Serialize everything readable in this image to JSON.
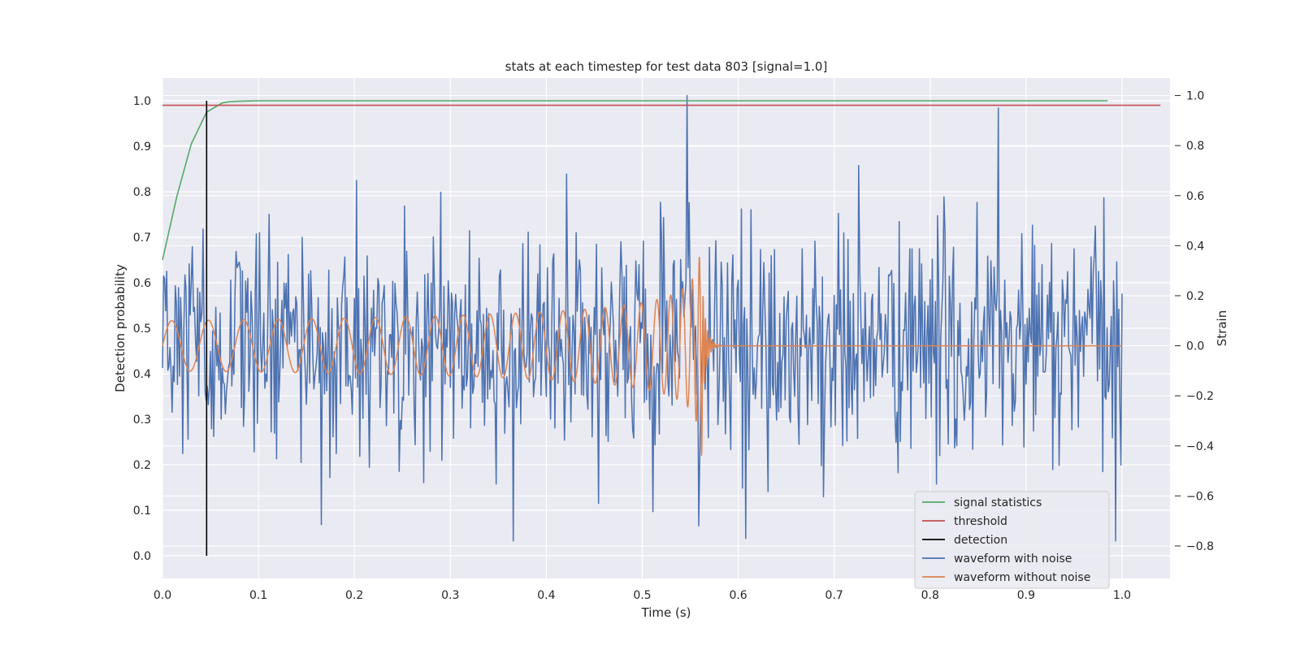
{
  "chart_data": {
    "type": "line",
    "title": "stats at each timestep for test data 803 [signal=1.0]",
    "xlabel": "Time (s)",
    "ylabel_left": "Detection probability",
    "ylabel_right": "Strain",
    "xlim": [
      0.0,
      1.05
    ],
    "ylim_left": [
      -0.05,
      1.05
    ],
    "ylim_right": [
      -0.93,
      1.07
    ],
    "x_ticks": [
      "0.0",
      "0.1",
      "0.2",
      "0.3",
      "0.4",
      "0.5",
      "0.6",
      "0.7",
      "0.8",
      "0.9",
      "1.0"
    ],
    "y_ticks_left": [
      "0.0",
      "0.1",
      "0.2",
      "0.3",
      "0.4",
      "0.5",
      "0.6",
      "0.7",
      "0.8",
      "0.9",
      "1.0"
    ],
    "y_ticks_right": [
      "−0.8",
      "−0.6",
      "−0.4",
      "−0.2",
      "0.0",
      "0.2",
      "0.4",
      "0.6",
      "0.8",
      "1.0"
    ],
    "grid": true,
    "legend_position": "lower-right",
    "legend": [
      {
        "label": "signal statistics",
        "color": "#55a868"
      },
      {
        "label": "threshold",
        "color": "#c44e52"
      },
      {
        "label": "detection",
        "color": "#000000"
      },
      {
        "label": "waveform with noise",
        "color": "#4c72b0"
      },
      {
        "label": "waveform without noise",
        "color": "#dd8452"
      }
    ],
    "series": [
      {
        "name": "signal statistics",
        "axis": "left",
        "color": "#55a868",
        "x": [
          0.0,
          0.015,
          0.03,
          0.046,
          0.062,
          0.07,
          0.08,
          0.1,
          0.2,
          0.4,
          0.6,
          0.8,
          0.985
        ],
        "y": [
          0.65,
          0.79,
          0.905,
          0.975,
          0.995,
          0.998,
          0.999,
          1.0,
          1.0,
          1.0,
          1.0,
          1.0,
          1.0
        ]
      },
      {
        "name": "threshold",
        "axis": "left",
        "color": "#c44e52",
        "x": [
          0.0,
          1.04
        ],
        "y": [
          0.99,
          0.99
        ]
      },
      {
        "name": "detection",
        "axis": "left",
        "color": "#000000",
        "x": [
          0.046,
          0.046
        ],
        "y": [
          0.0,
          1.0
        ]
      },
      {
        "name": "waveform with noise",
        "axis": "right",
        "color": "#4c72b0",
        "x_range": [
          0.0,
          1.0
        ],
        "points": 900,
        "approx_amplitude": 0.3,
        "extremes": [
          {
            "x": 0.547,
            "y": 1.0
          },
          {
            "x": 0.871,
            "y": 0.95
          },
          {
            "x": 0.366,
            "y": -0.78
          },
          {
            "x": 0.608,
            "y": -0.77
          },
          {
            "x": 0.993,
            "y": -0.78
          }
        ]
      },
      {
        "name": "waveform without noise",
        "axis": "right",
        "color": "#dd8452",
        "x_range": [
          0.0,
          1.0
        ],
        "start_amplitude": 0.1,
        "merger_time": 0.563,
        "peak_amplitude": 0.45,
        "post_merger_value": 0.0
      }
    ]
  }
}
